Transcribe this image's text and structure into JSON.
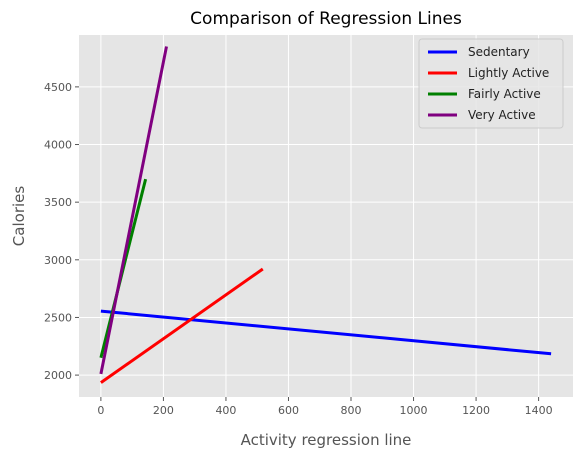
{
  "chart_data": {
    "type": "line",
    "title": "Comparison of Regression Lines",
    "xlabel": "Activity regression line",
    "ylabel": "Calories",
    "xlim": [
      -70,
      1510
    ],
    "ylim": [
      1810,
      4950
    ],
    "xticks": [
      0,
      200,
      400,
      600,
      800,
      1000,
      1200,
      1400
    ],
    "yticks": [
      2000,
      2500,
      3000,
      3500,
      4000,
      4500
    ],
    "grid": true,
    "legend_position": "top-right",
    "series": [
      {
        "name": "Sedentary",
        "color": "#0000ff",
        "x": [
          0,
          1440
        ],
        "y": [
          2555,
          2185
        ]
      },
      {
        "name": "Lightly Active",
        "color": "#ff0000",
        "x": [
          0,
          518
        ],
        "y": [
          1935,
          2920
        ]
      },
      {
        "name": "Fairly Active",
        "color": "#008000",
        "x": [
          0,
          143
        ],
        "y": [
          2150,
          3700
        ]
      },
      {
        "name": "Very Active",
        "color": "#800080",
        "x": [
          0,
          210
        ],
        "y": [
          2010,
          4850
        ]
      }
    ]
  }
}
